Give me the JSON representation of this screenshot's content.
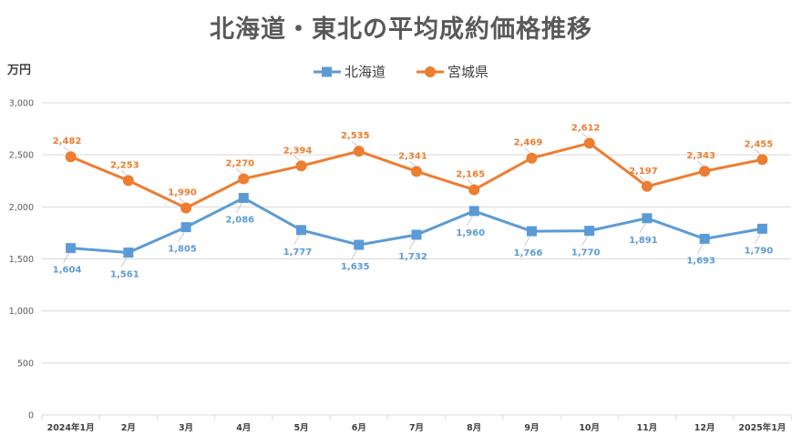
{
  "chart_data": {
    "type": "line",
    "title": "北海道・東北の平均成約価格推移",
    "unit_label": "万円",
    "categories": [
      "2024年1月",
      "2月",
      "3月",
      "4月",
      "5月",
      "6月",
      "7月",
      "8月",
      "9月",
      "10月",
      "11月",
      "12月",
      "2025年1月"
    ],
    "ylim": [
      0,
      3000
    ],
    "yticks": [
      0,
      500,
      1000,
      1500,
      2000,
      2500,
      3000
    ],
    "ytick_labels": [
      "0",
      "500",
      "1,000",
      "1,500",
      "2,000",
      "2,500",
      "3,000"
    ],
    "grid": true,
    "legend_position": "top-center",
    "series": [
      {
        "name": "北海道",
        "color": "#5b9bd5",
        "marker": "square",
        "values": [
          1604,
          1561,
          1805,
          2086,
          1777,
          1635,
          1732,
          1960,
          1766,
          1770,
          1891,
          1693,
          1790
        ],
        "labels": [
          "1,604",
          "1,561",
          "1,805",
          "2,086",
          "1,777",
          "1,635",
          "1,732",
          "1,960",
          "1,766",
          "1,770",
          "1,891",
          "1,693",
          "1,790"
        ],
        "label_position": "below"
      },
      {
        "name": "宮城県",
        "color": "#ed7d31",
        "marker": "circle",
        "values": [
          2482,
          2253,
          1990,
          2270,
          2394,
          2535,
          2341,
          2165,
          2469,
          2612,
          2197,
          2343,
          2455
        ],
        "labels": [
          "2,482",
          "2,253",
          "1,990",
          "2,270",
          "2,394",
          "2,535",
          "2,341",
          "2,165",
          "2,469",
          "2,612",
          "2,197",
          "2,343",
          "2,455"
        ],
        "label_position": "above"
      }
    ]
  }
}
